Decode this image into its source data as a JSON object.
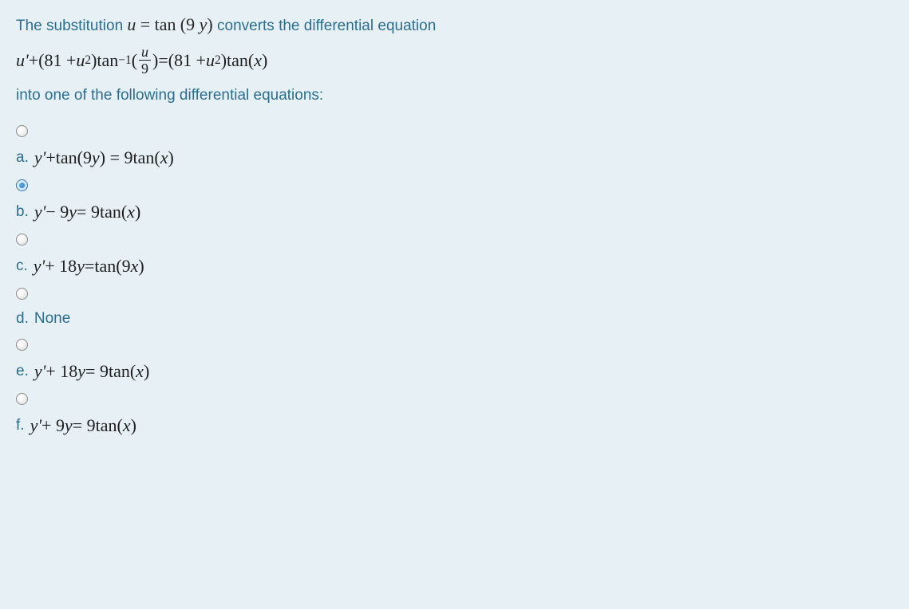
{
  "colors": {
    "background": "#e6f0f5",
    "question_text": "#2a6e90",
    "math_text": "#1f1f1f",
    "radio_border": "#8e8e8e",
    "radio_selected_border": "#3b79b7",
    "radio_selected_dot": "#2d7cc4"
  },
  "typography": {
    "body_font": "Segoe UI, Helvetica Neue, Arial, sans-serif",
    "body_size_pt": 14,
    "math_font": "Times New Roman, Georgia, serif",
    "math_size_pt": 16
  },
  "intro": {
    "prefix": "The substitution ",
    "sub_lhs": "u",
    "sub_eq": " = ",
    "sub_rhs_func": "tan",
    "sub_rhs_arg": "(9 y)",
    "suffix": " converts the differential equation"
  },
  "equation": {
    "u_prime": "u'",
    "plus1": " + ",
    "paren1_open": "(81 + ",
    "u_var": "u",
    "sq1": "2",
    "paren1_close": ") ",
    "tan1": "tan",
    "neg1": "−1",
    "lparen": "(",
    "frac_num": "u",
    "frac_den": "9",
    "rparen": ")",
    "equals": " = ",
    "paren2_open": "(81 + ",
    "u_var2": "u",
    "sq2": "2",
    "paren2_close": ") ",
    "tan2": "tan",
    "x_arg": "(x)"
  },
  "after_eq": "into one of the following differential equations:",
  "options": [
    {
      "letter": "a.",
      "type": "math",
      "parts": {
        "p1": "y'",
        "p2": " + ",
        "p3": "tan",
        "p4": "(9 ",
        "p5": "y",
        "p6": ") = 9 ",
        "p7": "tan",
        "p8": "(",
        "p9": "x",
        "p10": ")"
      },
      "selected": false
    },
    {
      "letter": "b.",
      "type": "math",
      "parts": {
        "p1": "y'",
        "p2": " − 9 ",
        "p3": "y",
        "p4": " = 9 ",
        "p5": "tan",
        "p6": "(",
        "p7": "x",
        "p8": ")"
      },
      "selected": true
    },
    {
      "letter": "c.",
      "type": "math",
      "parts": {
        "p1": "y'",
        "p2": " + 18 ",
        "p3": "y",
        "p4": " =  ",
        "p5": "tan",
        "p6": "(9 ",
        "p7": "x",
        "p8": ")"
      },
      "selected": false
    },
    {
      "letter": "d.",
      "type": "plain",
      "text": "None",
      "selected": false
    },
    {
      "letter": "e.",
      "type": "math",
      "parts": {
        "p1": "y'",
        "p2": " + 18 ",
        "p3": "y",
        "p4": " = 9 ",
        "p5": "tan",
        "p6": "(",
        "p7": "x",
        "p8": ")"
      },
      "selected": false
    },
    {
      "letter": "f.",
      "type": "math",
      "parts": {
        "p1": "y'",
        "p2": " + 9 ",
        "p3": "y",
        "p4": " = 9 ",
        "p5": "tan",
        "p6": "(",
        "p7": "x",
        "p8": ")"
      },
      "selected": false
    }
  ]
}
